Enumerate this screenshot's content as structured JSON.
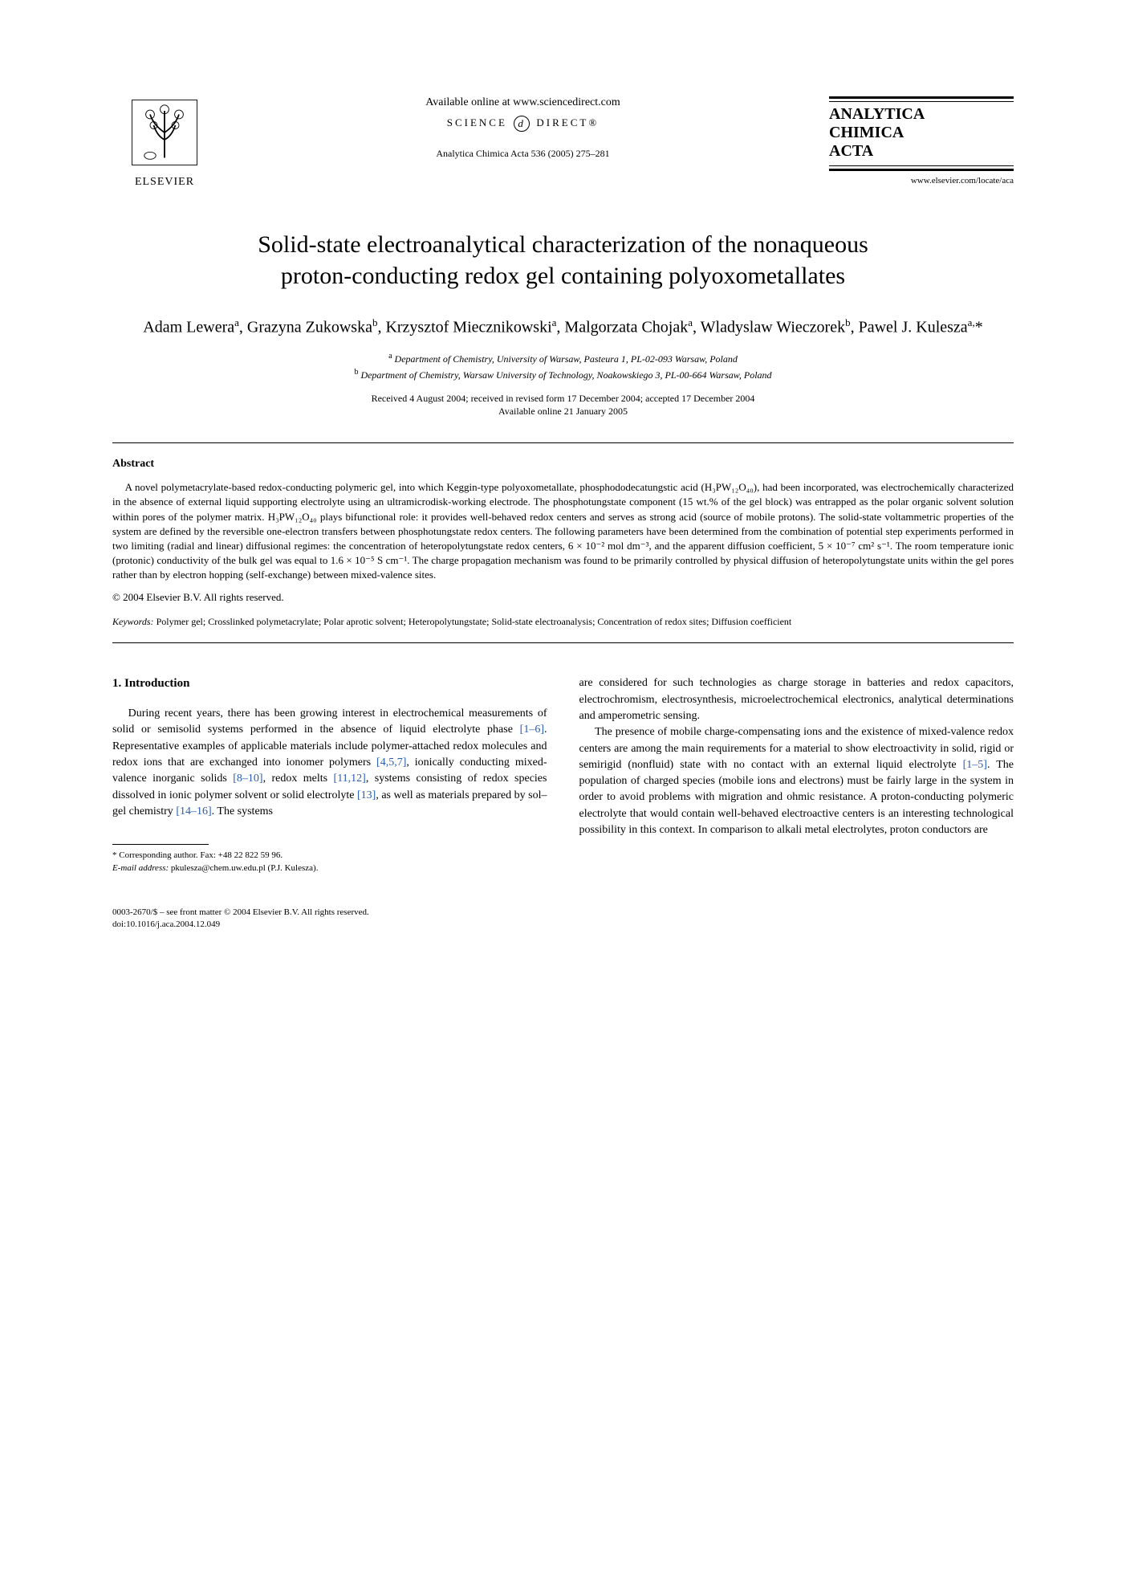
{
  "header": {
    "elsevier_label": "ELSEVIER",
    "available_text": "Available online at www.sciencedirect.com",
    "sd_prefix": "SCIENCE",
    "sd_suffix": "DIRECT®",
    "journal_ref": "Analytica Chimica Acta 536 (2005) 275–281",
    "journal_title_l1": "ANALYTICA",
    "journal_title_l2": "CHIMICA",
    "journal_title_l3": "ACTA",
    "journal_url": "www.elsevier.com/locate/aca"
  },
  "title_l1": "Solid-state electroanalytical characterization of the nonaqueous",
  "title_l2": "proton-conducting redox gel containing polyoxometallates",
  "authors_html": "Adam Lewera<sup>a</sup>, Grazyna Zukowska<sup>b</sup>, Krzysztof Miecznikowski<sup>a</sup>, Malgorzata Chojak<sup>a</sup>, Wladyslaw Wieczorek<sup>b</sup>, Pawel J. Kulesza<sup>a,</sup>*",
  "affiliations": {
    "a": "Department of Chemistry, University of Warsaw, Pasteura 1, PL-02-093 Warsaw, Poland",
    "b": "Department of Chemistry, Warsaw University of Technology, Noakowskiego 3, PL-00-664 Warsaw, Poland"
  },
  "dates_l1": "Received 4 August 2004; received in revised form 17 December 2004; accepted 17 December 2004",
  "dates_l2": "Available online 21 January 2005",
  "abstract": {
    "heading": "Abstract",
    "text": "A novel polymetacrylate-based redox-conducting polymeric gel, into which Keggin-type polyoxometallate, phosphododecatungstic acid (H₃PW₁₂O₄₀), had been incorporated, was electrochemically characterized in the absence of external liquid supporting electrolyte using an ultramicrodisk-working electrode. The phosphotungstate component (15 wt.% of the gel block) was entrapped as the polar organic solvent solution within pores of the polymer matrix. H₃PW₁₂O₄₀ plays bifunctional role: it provides well-behaved redox centers and serves as strong acid (source of mobile protons). The solid-state voltammetric properties of the system are defined by the reversible one-electron transfers between phosphotungstate redox centers. The following parameters have been determined from the combination of potential step experiments performed in two limiting (radial and linear) diffusional regimes: the concentration of heteropolytungstate redox centers, 6 × 10⁻² mol dm⁻³, and the apparent diffusion coefficient, 5 × 10⁻⁷ cm² s⁻¹. The room temperature ionic (protonic) conductivity of the bulk gel was equal to 1.6 × 10⁻⁵ S cm⁻¹. The charge propagation mechanism was found to be primarily controlled by physical diffusion of heteropolytungstate units within the gel pores rather than by electron hopping (self-exchange) between mixed-valence sites.",
    "copyright": "© 2004 Elsevier B.V. All rights reserved."
  },
  "keywords": {
    "label": "Keywords:",
    "text": "Polymer gel; Crosslinked polymetacrylate; Polar aprotic solvent; Heteropolytungstate; Solid-state electroanalysis; Concentration of redox sites; Diffusion coefficient"
  },
  "intro": {
    "heading": "1. Introduction",
    "col1_p1_pre": "During recent years, there has been growing interest in electrochemical measurements of solid or semisolid systems performed in the absence of liquid electrolyte phase ",
    "ref1": "[1–6]",
    "col1_p1_mid1": ". Representative examples of applicable materials include polymer-attached redox molecules and redox ions that are exchanged into ionomer polymers ",
    "ref2": "[4,5,7]",
    "col1_p1_mid2": ", ionically conducting mixed-valence inorganic solids ",
    "ref3": "[8–10]",
    "col1_p1_mid3": ", redox melts ",
    "ref4": "[11,12]",
    "col1_p1_mid4": ", systems consisting of redox species dissolved in ionic polymer solvent or solid electrolyte ",
    "ref5": "[13]",
    "col1_p1_mid5": ", as well as materials prepared by sol–gel chemistry ",
    "ref6": "[14–16]",
    "col1_p1_end": ". The systems",
    "col2_p1": "are considered for such technologies as charge storage in batteries and redox capacitors, electrochromism, electrosynthesis, microelectrochemical electronics, analytical determinations and amperometric sensing.",
    "col2_p2_pre": "The presence of mobile charge-compensating ions and the existence of mixed-valence redox centers are among the main requirements for a material to show electroactivity in solid, rigid or semirigid (nonfluid) state with no contact with an external liquid electrolyte ",
    "ref7": "[1–5]",
    "col2_p2_end": ". The population of charged species (mobile ions and electrons) must be fairly large in the system in order to avoid problems with migration and ohmic resistance. A proton-conducting polymeric electrolyte that would contain well-behaved electroactive centers is an interesting technological possibility in this context. In comparison to alkali metal electrolytes, proton conductors are"
  },
  "footnote": {
    "corr": "* Corresponding author. Fax: +48 22 822 59 96.",
    "email_label": "E-mail address:",
    "email": "pkulesza@chem.uw.edu.pl (P.J. Kulesza)."
  },
  "footer": {
    "line1": "0003-2670/$ – see front matter © 2004 Elsevier B.V. All rights reserved.",
    "line2": "doi:10.1016/j.aca.2004.12.049"
  },
  "colors": {
    "text": "#000000",
    "link": "#2a5db0",
    "background": "#ffffff"
  },
  "typography": {
    "title_fontsize_pt": 22,
    "authors_fontsize_pt": 15,
    "body_fontsize_pt": 10,
    "abstract_fontsize_pt": 9.5,
    "footnote_fontsize_pt": 8
  }
}
